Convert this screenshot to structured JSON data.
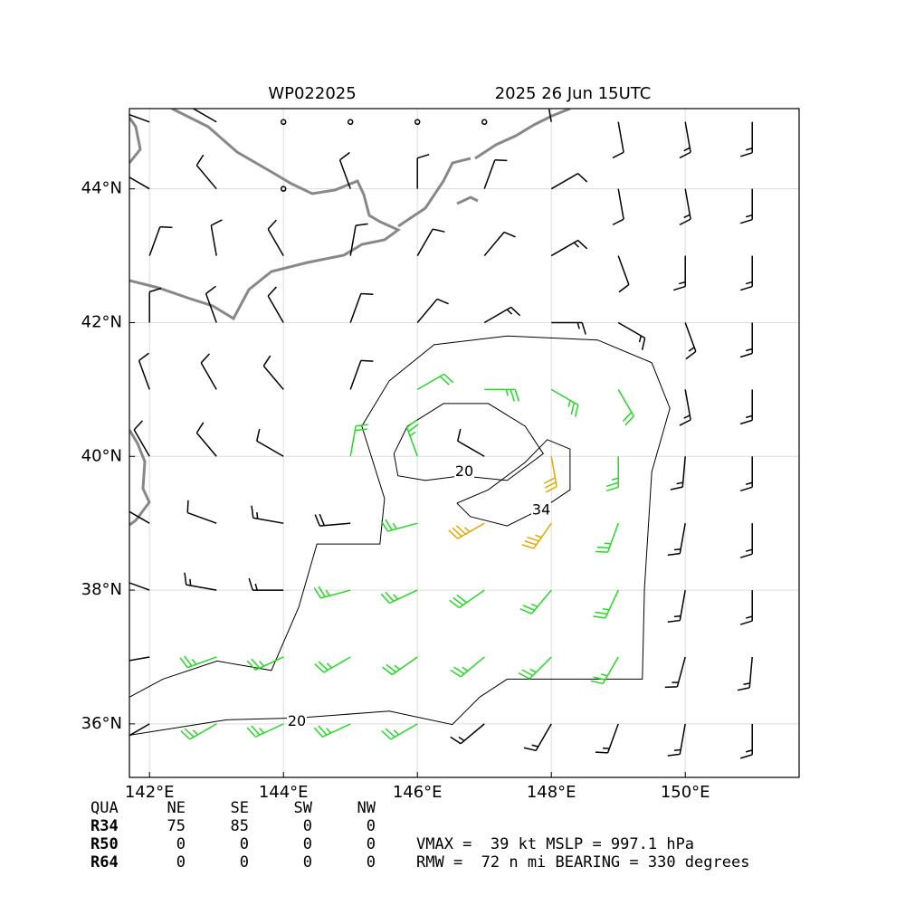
{
  "title_left": "WP022025",
  "title_right": "2025 26 Jun 15UTC",
  "map": {
    "xlim": [
      141.7,
      151.7
    ],
    "ylim": [
      35.2,
      45.2
    ],
    "xticks": [
      {
        "value": 142,
        "label": "142°E"
      },
      {
        "value": 144,
        "label": "144°E"
      },
      {
        "value": 146,
        "label": "146°E"
      },
      {
        "value": 148,
        "label": "148°E"
      },
      {
        "value": 150,
        "label": "150°E"
      }
    ],
    "yticks": [
      {
        "value": 36,
        "label": "36°N"
      },
      {
        "value": 38,
        "label": "38°N"
      },
      {
        "value": 40,
        "label": "40°N"
      },
      {
        "value": 42,
        "label": "42°N"
      },
      {
        "value": 44,
        "label": "44°N"
      }
    ],
    "grid": true,
    "barb_colors": [
      {
        "min": 0,
        "color": "#000000"
      },
      {
        "min": 22,
        "color": "#22dd22"
      },
      {
        "min": 34,
        "color": "#e8a800"
      }
    ],
    "barbs": {
      "lons": [
        142,
        143,
        144,
        145,
        146,
        147,
        148,
        149,
        150,
        151
      ],
      "lats": [
        36,
        37,
        38,
        39,
        40,
        41,
        42,
        43,
        44,
        45
      ],
      "speed": [
        [
          20,
          25,
          25,
          25,
          25,
          18,
          15,
          15,
          15,
          15
        ],
        [
          10,
          25,
          25,
          25,
          25,
          25,
          25,
          25,
          18,
          15
        ],
        [
          10,
          15,
          18,
          25,
          28,
          30,
          28,
          25,
          18,
          15
        ],
        [
          10,
          10,
          15,
          20,
          28,
          35,
          36,
          28,
          18,
          15
        ],
        [
          10,
          10,
          10,
          22,
          25,
          10,
          34,
          26,
          18,
          15
        ],
        [
          10,
          10,
          10,
          10,
          24,
          26,
          26,
          24,
          18,
          15
        ],
        [
          10,
          10,
          10,
          10,
          10,
          15,
          18,
          15,
          15,
          15
        ],
        [
          10,
          10,
          10,
          10,
          10,
          10,
          15,
          10,
          15,
          15
        ],
        [
          10,
          10,
          0,
          10,
          10,
          10,
          10,
          10,
          15,
          15
        ],
        [
          10,
          10,
          0,
          0,
          0,
          0,
          10,
          10,
          15,
          15
        ]
      ],
      "direction": [
        [
          240,
          240,
          245,
          245,
          240,
          230,
          210,
          200,
          190,
          180
        ],
        [
          260,
          250,
          245,
          240,
          235,
          230,
          225,
          210,
          195,
          185
        ],
        [
          290,
          280,
          270,
          255,
          245,
          235,
          220,
          205,
          190,
          180
        ],
        [
          300,
          290,
          280,
          265,
          255,
          240,
          215,
          200,
          190,
          180
        ],
        [
          330,
          320,
          300,
          10,
          340,
          300,
          170,
          180,
          185,
          180
        ],
        [
          340,
          330,
          320,
          20,
          60,
          90,
          120,
          150,
          170,
          180
        ],
        [
          0,
          340,
          330,
          20,
          40,
          60,
          90,
          120,
          160,
          180
        ],
        [
          20,
          350,
          330,
          10,
          30,
          40,
          60,
          160,
          180,
          180
        ],
        [
          300,
          320,
          330,
          340,
          0,
          20,
          60,
          170,
          170,
          180
        ],
        [
          290,
          300,
          330,
          330,
          330,
          330,
          350,
          170,
          170,
          180
        ]
      ]
    },
    "contours": [
      {
        "level": 20,
        "color": "#000000",
        "label_lon": 144.2,
        "label_lat": 36.03,
        "lon": [
          141.7,
          143.15,
          144.23,
          145.58,
          146.52,
          146.93,
          147.34,
          149.36,
          149.39,
          149.5,
          149.77,
          149.5,
          148.69,
          147.34,
          146.25,
          145.58,
          145.17,
          145.51,
          145.44,
          144.5,
          144.23,
          143.82,
          143.01,
          142.2,
          141.7
        ],
        "lat": [
          35.83,
          36.06,
          36.09,
          36.19,
          35.99,
          36.4,
          36.67,
          36.67,
          38.02,
          39.77,
          40.72,
          41.4,
          41.74,
          41.8,
          41.67,
          41.13,
          40.45,
          39.37,
          38.69,
          38.69,
          37.75,
          36.8,
          36.94,
          36.67,
          36.4
        ]
      },
      {
        "level": 20,
        "color": "#000000",
        "label_lon": 146.7,
        "label_lat": 39.77,
        "lon": [
          145.65,
          145.85,
          146.39,
          147.06,
          147.61,
          147.88,
          147.34,
          146.66,
          146.12,
          145.71,
          145.65
        ],
        "lat": [
          40.04,
          40.45,
          40.79,
          40.79,
          40.45,
          40.04,
          39.64,
          39.71,
          39.64,
          39.71,
          40.04
        ]
      },
      {
        "level": 34,
        "color": "#000000",
        "label_lon": 147.85,
        "label_lat": 39.19,
        "lon": [
          146.59,
          147.06,
          147.61,
          147.94,
          148.28,
          148.28,
          147.88,
          147.34,
          146.79,
          146.59
        ],
        "lat": [
          39.3,
          39.5,
          39.91,
          40.25,
          40.11,
          39.5,
          39.23,
          38.96,
          39.1,
          39.3
        ]
      }
    ]
  },
  "table": {
    "header": [
      "QUA",
      "NE",
      "SE",
      "SW",
      "NW"
    ],
    "rows": [
      [
        "R34",
        75,
        85,
        0,
        0
      ],
      [
        "R50",
        0,
        0,
        0,
        0
      ],
      [
        "R64",
        0,
        0,
        0,
        0
      ]
    ]
  },
  "info": [
    "VMAX =  39 kt MSLP = 997.1 hPa",
    "RMW =  72 n mi BEARING = 330 degrees"
  ]
}
